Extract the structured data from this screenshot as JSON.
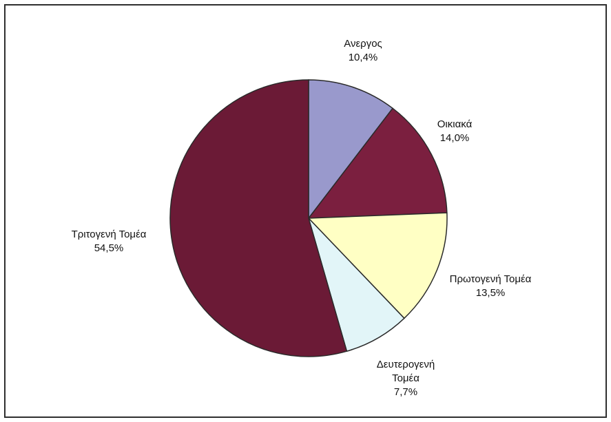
{
  "chart_data": {
    "type": "pie",
    "title": "",
    "slices": [
      {
        "label": "Ανεργος",
        "label_lines": [
          "Ανεργος"
        ],
        "value": 10.4,
        "display": "10,4%",
        "color": "#9999cc"
      },
      {
        "label": "Οικιακά",
        "label_lines": [
          "Οικιακά"
        ],
        "value": 14.0,
        "display": "14,0%",
        "color": "#7b1f3f"
      },
      {
        "label": "Πρωτογενή Τομέα",
        "label_lines": [
          "Πρωτογενή Τομέα"
        ],
        "value": 13.5,
        "display": "13,5%",
        "color": "#ffffc4"
      },
      {
        "label": "Δευτερογενή Τομέα",
        "label_lines": [
          "Δευτερογενή",
          "Τομέα"
        ],
        "value": 7.7,
        "display": "7,7%",
        "color": "#e2f5f8"
      },
      {
        "label": "Τριτογενή Τομέα",
        "label_lines": [
          "Τριτογενή Τομέα"
        ],
        "value": 54.5,
        "display": "54,5%",
        "color": "#6b1a36"
      }
    ],
    "start_angle_deg": 0,
    "direction": "clockwise",
    "legend": "none"
  }
}
